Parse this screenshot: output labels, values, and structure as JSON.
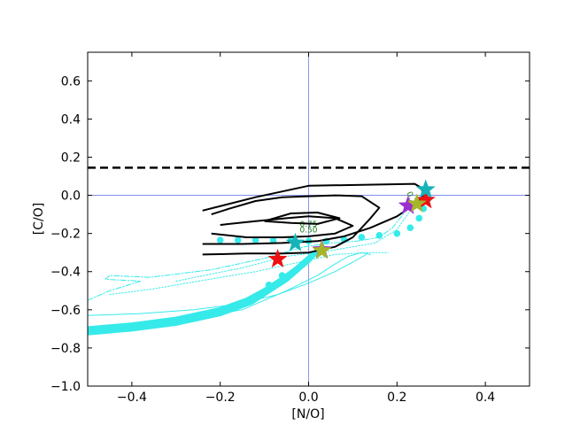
{
  "chart_data": {
    "type": "line",
    "title": "",
    "xlabel": "[N/O]",
    "ylabel": "[C/O]",
    "xlim": [
      -0.5,
      0.5
    ],
    "ylim": [
      -1.0,
      0.75
    ],
    "xticks": [
      -0.4,
      -0.2,
      0.0,
      0.2,
      0.4
    ],
    "xtick_labels": [
      "−0.4",
      "−0.2",
      "0.0",
      "0.2",
      "0.4"
    ],
    "yticks": [
      -1.0,
      -0.8,
      -0.6,
      -0.4,
      -0.2,
      0.0,
      0.2,
      0.4,
      0.6
    ],
    "ytick_labels": [
      "−1.0",
      "−0.8",
      "−0.6",
      "−0.4",
      "−0.2",
      "0.0",
      "0.2",
      "0.4",
      "0.6"
    ],
    "grid": false,
    "legend": "none",
    "reference_lines": {
      "solar": {
        "x": 0.0,
        "y": 0.0,
        "color": "#6f7fe6"
      },
      "dashed": {
        "y": 0.145,
        "color": "#000000"
      }
    },
    "contours": [
      {
        "level": "0.25",
        "label_at": [
          0.23,
          -0.03
        ],
        "label_rotation": 65,
        "points": [
          [
            -0.24,
            -0.08
          ],
          [
            -0.12,
            -0.01
          ],
          [
            0.0,
            0.05
          ],
          [
            0.12,
            0.055
          ],
          [
            0.24,
            0.06
          ],
          [
            0.255,
            0.04
          ],
          [
            0.26,
            0.0
          ],
          [
            0.245,
            -0.04
          ],
          [
            0.2,
            -0.11
          ],
          [
            0.14,
            -0.17
          ],
          [
            0.08,
            -0.215
          ],
          [
            0.02,
            -0.24
          ],
          [
            -0.06,
            -0.25
          ],
          [
            -0.15,
            -0.255
          ],
          [
            -0.24,
            -0.255
          ]
        ]
      },
      {
        "level": "0.50",
        "label_at": [
          0.0,
          -0.195
        ],
        "label_rotation": 0,
        "points": [
          [
            -0.24,
            -0.31
          ],
          [
            -0.14,
            -0.305
          ],
          [
            -0.06,
            -0.305
          ],
          [
            0.0,
            -0.3
          ],
          [
            0.06,
            -0.27
          ],
          [
            0.1,
            -0.22
          ],
          [
            0.14,
            -0.12
          ],
          [
            0.16,
            -0.065
          ],
          [
            0.12,
            -0.005
          ],
          [
            0.06,
            -0.0
          ],
          [
            0.0,
            -0.005
          ],
          [
            -0.06,
            -0.01
          ],
          [
            -0.12,
            -0.03
          ],
          [
            -0.18,
            -0.07
          ],
          [
            -0.22,
            -0.1
          ]
        ]
      },
      {
        "level": "0.75",
        "label_at": [
          0.0,
          -0.165
        ],
        "label_rotation": 0,
        "points": [
          [
            -0.2,
            -0.155
          ],
          [
            -0.12,
            -0.135
          ],
          [
            -0.05,
            -0.12
          ],
          [
            0.0,
            -0.11
          ],
          [
            0.06,
            -0.12
          ],
          [
            0.1,
            -0.16
          ],
          [
            0.06,
            -0.2
          ],
          [
            0.0,
            -0.215
          ],
          [
            -0.06,
            -0.22
          ],
          [
            -0.14,
            -0.22
          ],
          [
            -0.22,
            -0.2
          ]
        ]
      },
      {
        "level": "inner",
        "points": [
          [
            -0.1,
            -0.135
          ],
          [
            -0.04,
            -0.095
          ],
          [
            0.02,
            -0.09
          ],
          [
            0.07,
            -0.12
          ],
          [
            0.02,
            -0.15
          ],
          [
            -0.04,
            -0.145
          ],
          [
            -0.1,
            -0.135
          ]
        ]
      }
    ],
    "series": [
      {
        "style": "thick",
        "points": [
          [
            -0.5,
            -0.7
          ],
          [
            -0.4,
            -0.68
          ],
          [
            -0.3,
            -0.65
          ],
          [
            -0.2,
            -0.6
          ],
          [
            -0.14,
            -0.55
          ],
          [
            -0.1,
            -0.5
          ],
          [
            -0.06,
            -0.44
          ],
          [
            -0.03,
            -0.39
          ],
          [
            0.0,
            -0.33
          ],
          [
            0.02,
            -0.29
          ]
        ]
      },
      {
        "style": "thick",
        "points": [
          [
            -0.5,
            -0.72
          ],
          [
            -0.4,
            -0.7
          ],
          [
            -0.3,
            -0.67
          ],
          [
            -0.2,
            -0.62
          ],
          [
            -0.13,
            -0.56
          ],
          [
            -0.09,
            -0.5
          ],
          [
            -0.05,
            -0.44
          ],
          [
            -0.02,
            -0.38
          ],
          [
            0.0,
            -0.34
          ],
          [
            0.02,
            -0.29
          ]
        ]
      },
      {
        "style": "solid",
        "points": [
          [
            -0.5,
            -0.63
          ],
          [
            -0.38,
            -0.62
          ],
          [
            -0.26,
            -0.6
          ],
          [
            -0.16,
            -0.57
          ],
          [
            -0.07,
            -0.52
          ],
          [
            0.0,
            -0.46
          ],
          [
            0.06,
            -0.4
          ],
          [
            0.1,
            -0.35
          ],
          [
            0.13,
            -0.31
          ]
        ]
      },
      {
        "style": "solid",
        "points": [
          [
            -0.5,
            -0.7
          ],
          [
            -0.3,
            -0.66
          ],
          [
            -0.15,
            -0.6
          ],
          [
            -0.05,
            -0.5
          ],
          [
            0.02,
            -0.42
          ],
          [
            0.06,
            -0.36
          ],
          [
            0.09,
            -0.32
          ],
          [
            0.12,
            -0.3
          ],
          [
            0.14,
            -0.31
          ]
        ]
      },
      {
        "style": "dotted",
        "points": [
          [
            -0.45,
            -0.52
          ],
          [
            -0.35,
            -0.49
          ],
          [
            -0.25,
            -0.45
          ],
          [
            -0.12,
            -0.4
          ],
          [
            -0.02,
            -0.35
          ],
          [
            0.06,
            -0.31
          ],
          [
            0.14,
            -0.3
          ],
          [
            0.18,
            -0.3
          ]
        ]
      },
      {
        "style": "dashdot",
        "points": [
          [
            -0.5,
            -0.55
          ],
          [
            -0.45,
            -0.5
          ],
          [
            -0.38,
            -0.45
          ],
          [
            -0.46,
            -0.44
          ],
          [
            -0.45,
            -0.42
          ],
          [
            -0.36,
            -0.43
          ],
          [
            -0.22,
            -0.39
          ],
          [
            -0.1,
            -0.33
          ],
          [
            -0.01,
            -0.27
          ],
          [
            0.05,
            -0.25
          ],
          [
            0.11,
            -0.24
          ],
          [
            0.16,
            -0.22
          ],
          [
            0.19,
            -0.17
          ],
          [
            0.22,
            -0.08
          ],
          [
            0.25,
            -0.03
          ]
        ]
      },
      {
        "style": "dotted",
        "points": [
          [
            -0.3,
            -0.45
          ],
          [
            -0.15,
            -0.38
          ],
          [
            -0.05,
            -0.32
          ],
          [
            0.05,
            -0.29
          ],
          [
            0.15,
            -0.25
          ],
          [
            0.2,
            -0.18
          ],
          [
            0.23,
            -0.08
          ],
          [
            0.26,
            -0.01
          ]
        ]
      },
      {
        "style": "dots",
        "points": [
          [
            -0.48,
            -0.71
          ],
          [
            -0.4,
            -0.69
          ],
          [
            -0.32,
            -0.67
          ],
          [
            -0.24,
            -0.63
          ],
          [
            -0.17,
            -0.58
          ],
          [
            -0.12,
            -0.53
          ],
          [
            -0.09,
            -0.47
          ],
          [
            -0.06,
            -0.42
          ],
          [
            -0.2,
            -0.235
          ],
          [
            -0.16,
            -0.235
          ],
          [
            -0.12,
            -0.235
          ],
          [
            -0.08,
            -0.235
          ],
          [
            -0.04,
            -0.235
          ],
          [
            0.0,
            -0.24
          ],
          [
            0.04,
            -0.24
          ],
          [
            0.08,
            -0.23
          ],
          [
            0.12,
            -0.22
          ],
          [
            0.16,
            -0.21
          ],
          [
            0.2,
            -0.2
          ],
          [
            0.23,
            -0.17
          ],
          [
            0.25,
            -0.12
          ],
          [
            0.26,
            -0.07
          ],
          [
            0.27,
            -0.02
          ]
        ]
      }
    ],
    "stars": [
      {
        "x": -0.07,
        "y": -0.335,
        "color": "#ee1111"
      },
      {
        "x": 0.265,
        "y": -0.025,
        "color": "#ee1111"
      },
      {
        "x": 0.265,
        "y": 0.03,
        "color": "#17b3b8"
      },
      {
        "x": -0.03,
        "y": -0.25,
        "color": "#17b3b8"
      },
      {
        "x": 0.225,
        "y": -0.055,
        "color": "#9b30d0"
      },
      {
        "x": 0.03,
        "y": -0.285,
        "color": "#9b30d0"
      },
      {
        "x": 0.245,
        "y": -0.045,
        "color": "#a6b52a"
      },
      {
        "x": 0.03,
        "y": -0.29,
        "color": "#a6b52a"
      }
    ],
    "colors": {
      "model_tracks": "#36eaea",
      "contours": "#000000",
      "contour_labels": "#1a7a1a",
      "axes": "#000000"
    }
  }
}
